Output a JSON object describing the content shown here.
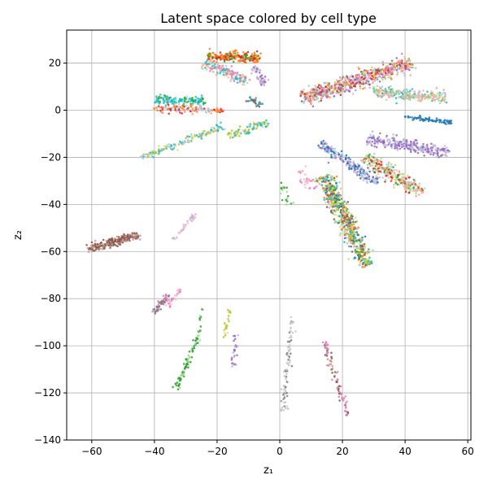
{
  "chart_data": {
    "type": "scatter",
    "title": "Latent space colored by cell type",
    "xlabel": "z₁",
    "ylabel": "z₂",
    "xlim": [
      -68,
      61
    ],
    "ylim": [
      -140,
      34
    ],
    "xticks": [
      -60,
      -40,
      -20,
      0,
      20,
      40,
      60
    ],
    "yticks": [
      20,
      0,
      -20,
      -40,
      -60,
      -80,
      -100,
      -120,
      -140
    ],
    "xtick_labels": [
      "−60",
      "−40",
      "−20",
      "0",
      "20",
      "40",
      "60"
    ],
    "ytick_labels": [
      "20",
      "0",
      "−20",
      "−40",
      "−60",
      "−80",
      "−100",
      "−120",
      "−140"
    ],
    "grid": true,
    "legend": "none",
    "palette": [
      "#1f77b4",
      "#ff7f0e",
      "#2ca02c",
      "#d62728",
      "#9467bd",
      "#8c564b",
      "#e377c2",
      "#7f7f7f",
      "#bcbd22",
      "#17becf",
      "#aec7e8",
      "#ffbb78",
      "#98df8a",
      "#ff9896",
      "#c5b0d5",
      "#c49c94",
      "#f7b6d2",
      "#c7c7c7",
      "#dbdb8d",
      "#9edae5"
    ],
    "clusters": [
      {
        "x0": -61,
        "y0": -59,
        "x1": -45,
        "y1": -53,
        "width": 1.6,
        "colors": [
          "#8c564b",
          "#8c564b",
          "#c49c94"
        ],
        "n": 220
      },
      {
        "x0": -40,
        "y0": -86,
        "x1": -35,
        "y1": -78,
        "width": 1.0,
        "colors": [
          "#7f7f7f",
          "#7f7f7f",
          "#e377c2"
        ],
        "n": 60
      },
      {
        "x0": -36,
        "y0": -84,
        "x1": -32,
        "y1": -76,
        "width": 0.8,
        "colors": [
          "#f7b6d2",
          "#e377c2"
        ],
        "n": 25
      },
      {
        "x0": -34,
        "y0": -55,
        "x1": -27,
        "y1": -44,
        "width": 0.6,
        "colors": [
          "#c5b0d5",
          "#f7b6d2"
        ],
        "n": 35
      },
      {
        "x0": -33,
        "y0": -118,
        "x1": -26,
        "y1": -96,
        "width": 0.8,
        "colors": [
          "#2ca02c",
          "#2ca02c",
          "#98df8a"
        ],
        "n": 70
      },
      {
        "x0": -26,
        "y0": -98,
        "x1": -25,
        "y1": -84,
        "width": 0.5,
        "colors": [
          "#2ca02c",
          "#98df8a"
        ],
        "n": 15
      },
      {
        "x0": -18,
        "y0": -97,
        "x1": -16,
        "y1": -85,
        "width": 0.6,
        "colors": [
          "#dbdb8d",
          "#bcbd22"
        ],
        "n": 25
      },
      {
        "x0": -15,
        "y0": -110,
        "x1": -14,
        "y1": -95,
        "width": 0.6,
        "colors": [
          "#c5b0d5",
          "#9467bd"
        ],
        "n": 25
      },
      {
        "x0": 1,
        "y0": -128,
        "x1": 4,
        "y1": -88,
        "width": 0.8,
        "colors": [
          "#c7c7c7",
          "#c7c7c7",
          "#7f7f7f"
        ],
        "n": 90
      },
      {
        "x0": 14,
        "y0": -98,
        "x1": 22,
        "y1": -130,
        "width": 0.8,
        "colors": [
          "#c49c94",
          "#8c564b",
          "#e377c2"
        ],
        "n": 80
      },
      {
        "x0": 6,
        "y0": -25,
        "x1": 11,
        "y1": -34,
        "width": 2.5,
        "colors": [
          "#f7b6d2",
          "#ff9896",
          "#e377c2"
        ],
        "n": 30
      },
      {
        "x0": -44,
        "y0": -20,
        "x1": -18,
        "y1": -7,
        "width": 1.2,
        "colors": [
          "#17becf",
          "#aec7e8",
          "#dbdb8d",
          "#bcbd22"
        ],
        "n": 150
      },
      {
        "x0": -16,
        "y0": -11,
        "x1": -4,
        "y1": -5,
        "width": 1.6,
        "colors": [
          "#17becf",
          "#bcbd22",
          "#dbdb8d"
        ],
        "n": 90
      },
      {
        "x0": -40,
        "y0": 4,
        "x1": -24,
        "y1": 4,
        "width": 1.6,
        "colors": [
          "#17becf",
          "#17becf",
          "#2ca02c",
          "#9edae5"
        ],
        "n": 160
      },
      {
        "x0": -40,
        "y0": 1,
        "x1": -18,
        "y1": 0,
        "width": 1.4,
        "colors": [
          "#aec7e8",
          "#ff7f0e",
          "#d62728",
          "#ff9896"
        ],
        "n": 120
      },
      {
        "x0": -24,
        "y0": 20,
        "x1": -10,
        "y1": 12,
        "width": 2.2,
        "colors": [
          "#c7c7c7",
          "#ffbb78",
          "#17becf",
          "#e377c2"
        ],
        "n": 180
      },
      {
        "x0": -23,
        "y0": 23,
        "x1": -6,
        "y1": 22,
        "width": 2.0,
        "colors": [
          "#ff7f0e",
          "#d62728",
          "#ff7f0e",
          "#2ca02c"
        ],
        "n": 200
      },
      {
        "x0": -8,
        "y0": 18,
        "x1": -5,
        "y1": 11,
        "width": 1.5,
        "colors": [
          "#9467bd",
          "#c5b0d5"
        ],
        "n": 50
      },
      {
        "x0": -10,
        "y0": 5,
        "x1": -6,
        "y1": 2,
        "width": 1.0,
        "colors": [
          "#17becf",
          "#8c564b",
          "#7f7f7f"
        ],
        "n": 30
      },
      {
        "x0": 7,
        "y0": 5,
        "x1": 42,
        "y1": 20,
        "width": 3.2,
        "colors": [
          "#ff9896",
          "#aec7e8",
          "#98df8a",
          "#ffbb78",
          "#9467bd",
          "#c5b0d5",
          "#e377c2",
          "#8c564b",
          "#ff7f0e",
          "#d62728"
        ],
        "n": 650
      },
      {
        "x0": 30,
        "y0": 8,
        "x1": 53,
        "y1": 5,
        "width": 2.2,
        "colors": [
          "#17becf",
          "#98df8a",
          "#ffbb78",
          "#ff9896",
          "#aec7e8"
        ],
        "n": 260
      },
      {
        "x0": 40,
        "y0": -3,
        "x1": 55,
        "y1": -5,
        "width": 0.6,
        "colors": [
          "#1f77b4",
          "#1f77b4"
        ],
        "n": 70
      },
      {
        "x0": 28,
        "y0": -12,
        "x1": 54,
        "y1": -18,
        "width": 2.4,
        "colors": [
          "#9467bd",
          "#c5b0d5",
          "#9467bd",
          "#aec7e8"
        ],
        "n": 260
      },
      {
        "x0": 27,
        "y0": -20,
        "x1": 45,
        "y1": -35,
        "width": 2.6,
        "colors": [
          "#ffbb78",
          "#aec7e8",
          "#ff9896",
          "#d62728",
          "#2ca02c",
          "#98df8a"
        ],
        "n": 280
      },
      {
        "x0": 13,
        "y0": -14,
        "x1": 31,
        "y1": -31,
        "width": 1.8,
        "colors": [
          "#1f77b4",
          "#c5b0d5",
          "#aec7e8",
          "#9467bd"
        ],
        "n": 220
      },
      {
        "x0": 14,
        "y0": -28,
        "x1": 28,
        "y1": -66,
        "width": 2.8,
        "colors": [
          "#1f77b4",
          "#17becf",
          "#ff7f0e",
          "#bcbd22",
          "#2ca02c",
          "#98df8a",
          "#ffbb78",
          "#dbdb8d",
          "#8c564b",
          "#c5b0d5"
        ],
        "n": 650
      },
      {
        "x0": 1,
        "y0": -30,
        "x1": 3,
        "y1": -40,
        "width": 1.4,
        "colors": [
          "#2ca02c",
          "#98df8a"
        ],
        "n": 18
      }
    ]
  }
}
